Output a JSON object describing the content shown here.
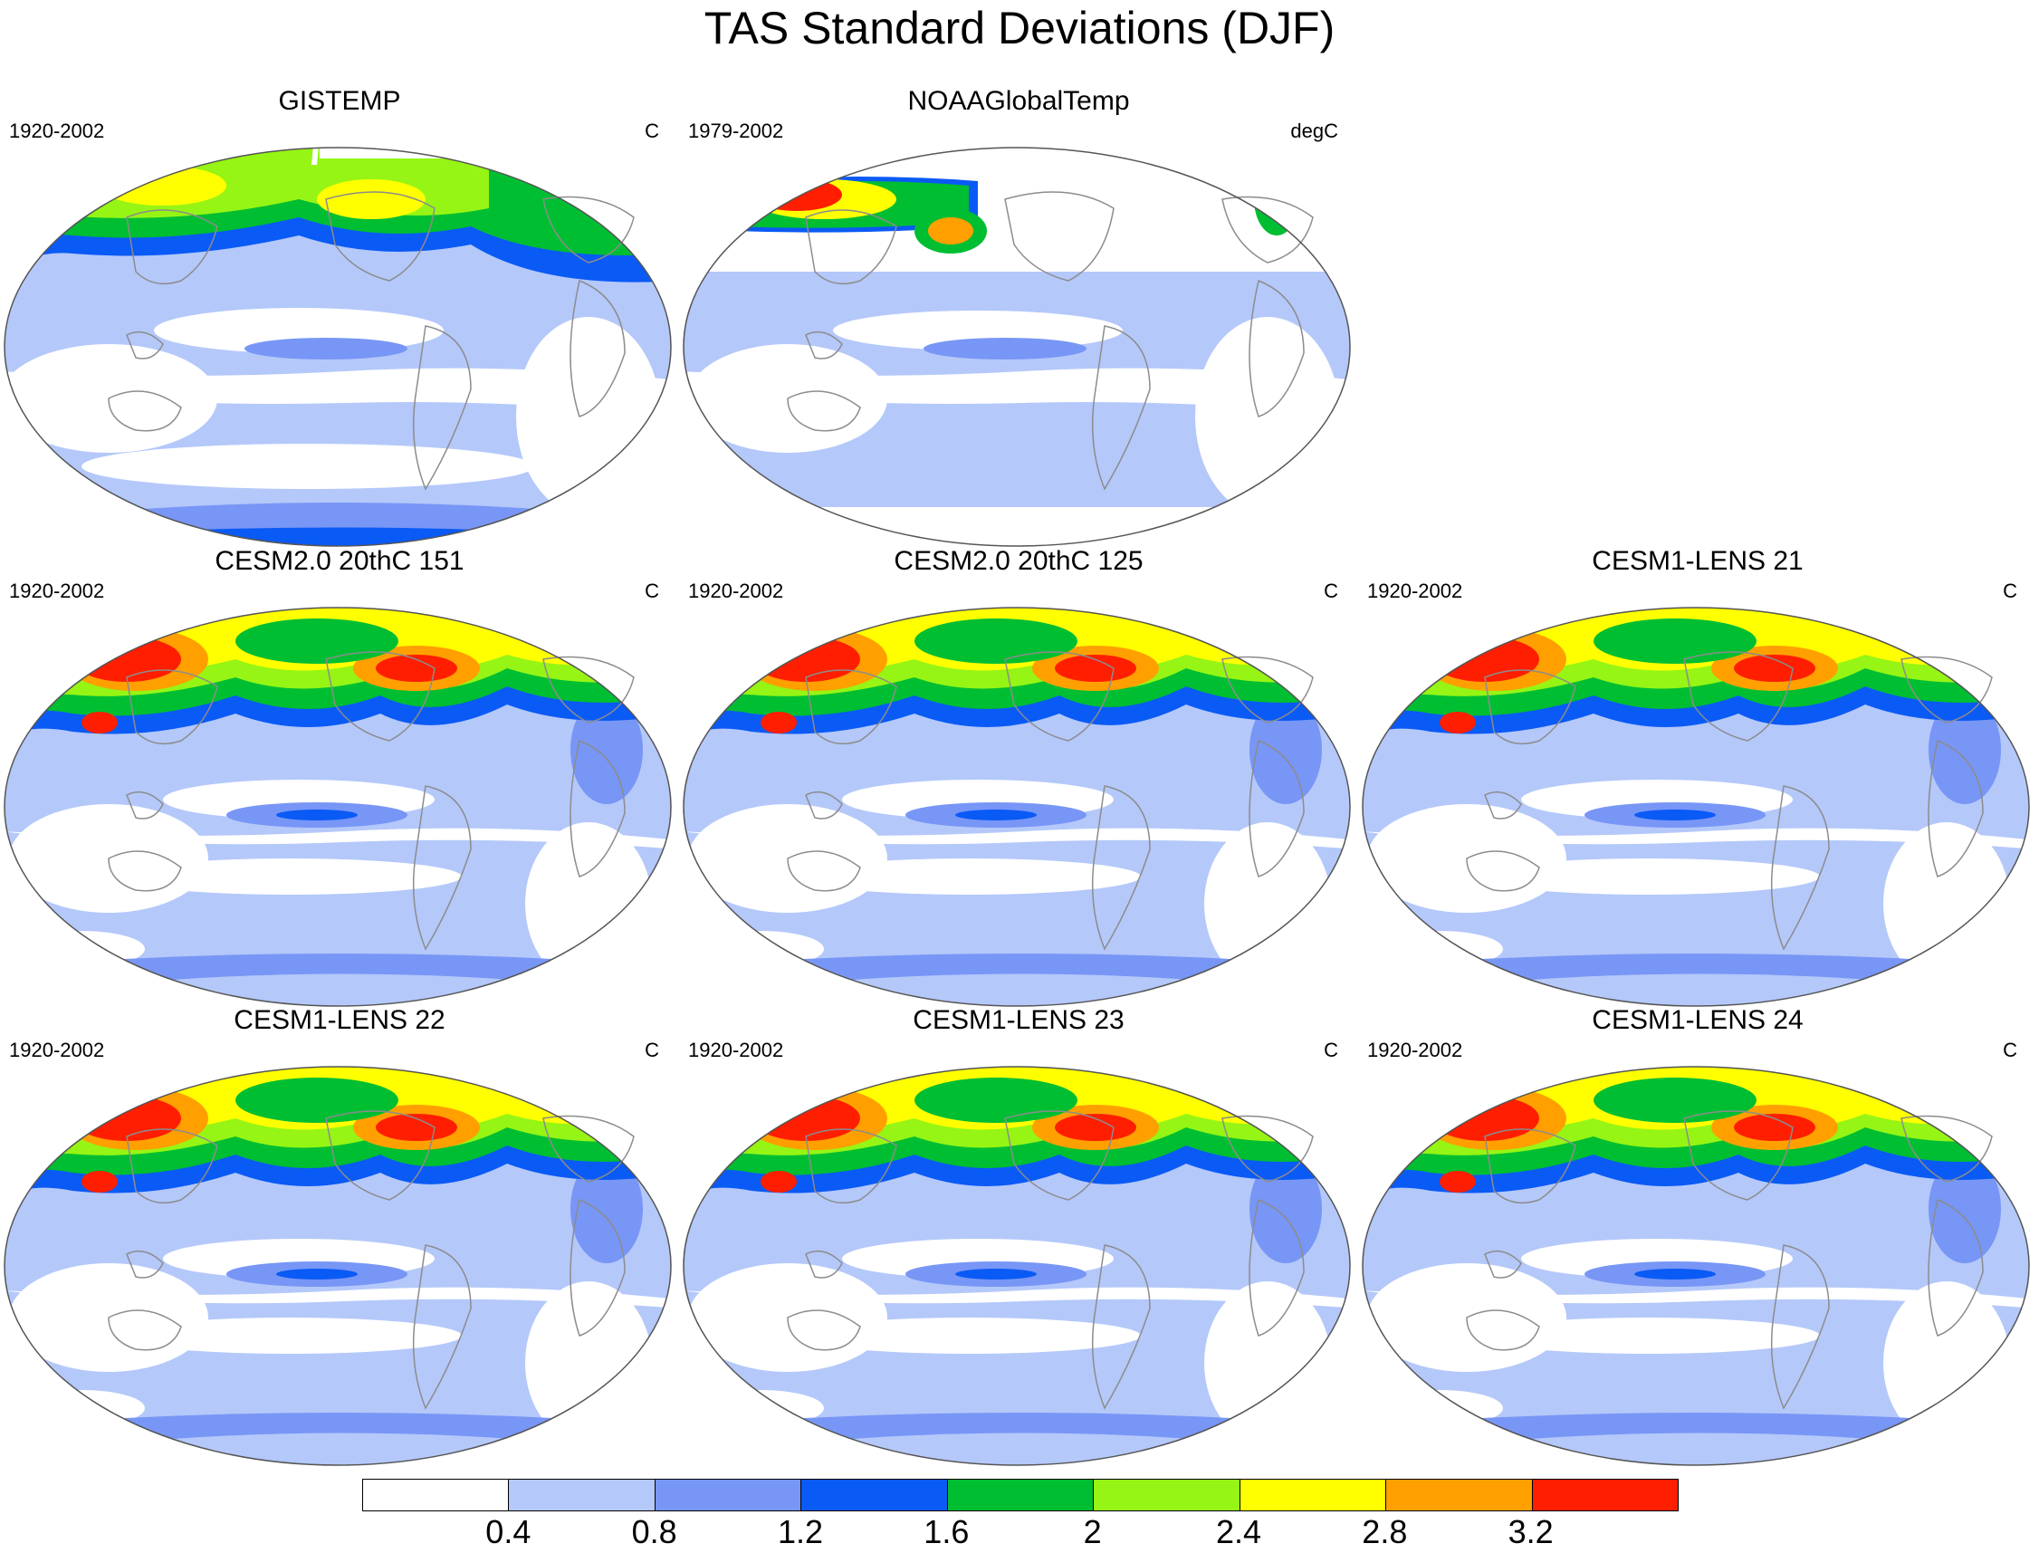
{
  "title": "TAS Standard Deviations (DJF)",
  "panels": [
    {
      "title": "GISTEMP",
      "period": "1920-2002",
      "units": "C",
      "pattern": "obs1"
    },
    {
      "title": "NOAAGlobalTemp",
      "period": "1979-2002",
      "units": "degC",
      "pattern": "obs2"
    },
    {
      "title": "CESM2.0 20thC 151",
      "period": "1920-2002",
      "units": "C",
      "pattern": "model"
    },
    {
      "title": "CESM2.0 20thC 125",
      "period": "1920-2002",
      "units": "C",
      "pattern": "model"
    },
    {
      "title": "CESM1-LENS 21",
      "period": "1920-2002",
      "units": "C",
      "pattern": "model"
    },
    {
      "title": "CESM1-LENS 22",
      "period": "1920-2002",
      "units": "C",
      "pattern": "model"
    },
    {
      "title": "CESM1-LENS 23",
      "period": "1920-2002",
      "units": "C",
      "pattern": "model"
    },
    {
      "title": "CESM1-LENS 24",
      "period": "1920-2002",
      "units": "C",
      "pattern": "model"
    }
  ],
  "colorbar": {
    "colors": [
      "#ffffff",
      "#b4c8fa",
      "#7896f5",
      "#0a5af5",
      "#00be32",
      "#96f514",
      "#ffff00",
      "#ffa000",
      "#ff1e00"
    ],
    "labels": [
      "0.4",
      "0.8",
      "1.2",
      "1.6",
      "2",
      "2.4",
      "2.8",
      "3.2"
    ]
  }
}
